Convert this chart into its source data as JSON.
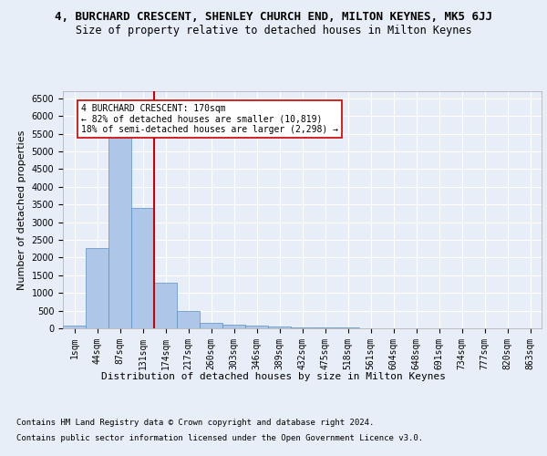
{
  "title_line1": "4, BURCHARD CRESCENT, SHENLEY CHURCH END, MILTON KEYNES, MK5 6JJ",
  "title_line2": "Size of property relative to detached houses in Milton Keynes",
  "xlabel": "Distribution of detached houses by size in Milton Keynes",
  "ylabel": "Number of detached properties",
  "footer_line1": "Contains HM Land Registry data © Crown copyright and database right 2024.",
  "footer_line2": "Contains public sector information licensed under the Open Government Licence v3.0.",
  "categories": [
    "1sqm",
    "44sqm",
    "87sqm",
    "131sqm",
    "174sqm",
    "217sqm",
    "260sqm",
    "303sqm",
    "346sqm",
    "389sqm",
    "432sqm",
    "475sqm",
    "518sqm",
    "561sqm",
    "604sqm",
    "648sqm",
    "691sqm",
    "734sqm",
    "777sqm",
    "820sqm",
    "863sqm"
  ],
  "values": [
    70,
    2270,
    5420,
    3390,
    1290,
    480,
    160,
    95,
    70,
    50,
    30,
    25,
    20,
    0,
    0,
    0,
    0,
    0,
    0,
    0,
    0
  ],
  "bar_color": "#aec6e8",
  "bar_edge_color": "#5a8fc2",
  "vline_x": 3.5,
  "vline_color": "#cc0000",
  "annotation_text": "4 BURCHARD CRESCENT: 170sqm\n← 82% of detached houses are smaller (10,819)\n18% of semi-detached houses are larger (2,298) →",
  "annotation_box_color": "#ffffff",
  "annotation_box_edge_color": "#cc0000",
  "ylim": [
    0,
    6700
  ],
  "yticks": [
    0,
    500,
    1000,
    1500,
    2000,
    2500,
    3000,
    3500,
    4000,
    4500,
    5000,
    5500,
    6000,
    6500
  ],
  "bg_color": "#e8eef7",
  "plot_bg_color": "#e8eef7",
  "grid_color": "#ffffff",
  "title_fontsize": 9,
  "subtitle_fontsize": 8.5,
  "axis_label_fontsize": 8,
  "tick_fontsize": 7,
  "footer_fontsize": 6.5
}
